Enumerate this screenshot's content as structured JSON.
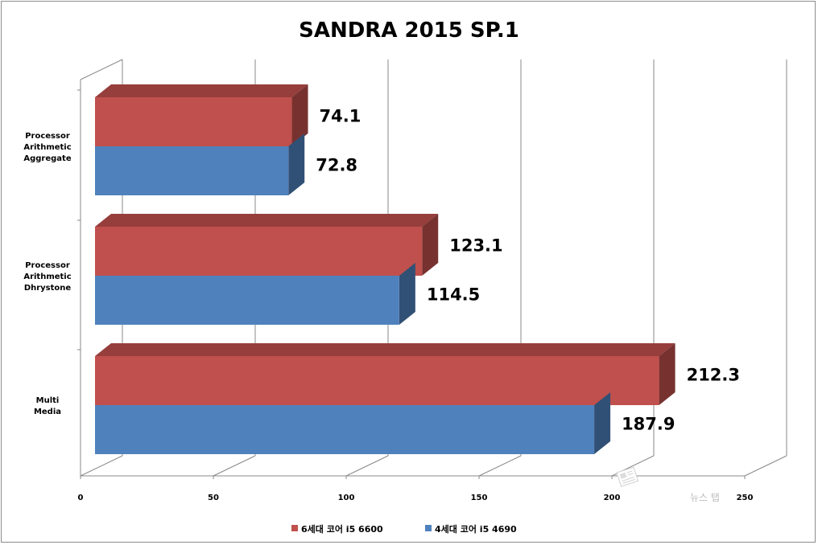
{
  "chart_data": {
    "type": "bar",
    "orientation": "horizontal",
    "three_d": true,
    "title": "SANDRA 2015 SP.1",
    "categories": [
      [
        "Processor",
        "Arithmetic",
        "Aggregate"
      ],
      [
        "Processor",
        "Arithmetic",
        "Dhrystone"
      ],
      [
        "Multi",
        "Media"
      ]
    ],
    "series": [
      {
        "name": "6세대 코어 i5 6600",
        "color": "#c0504d",
        "values": [
          74.1,
          123.1,
          212.3
        ],
        "labels": [
          "74.1",
          "123.1",
          "212.3"
        ]
      },
      {
        "name": "4세대 코어 i5 4690",
        "color": "#4f81bd",
        "values": [
          72.8,
          114.5,
          187.9
        ],
        "labels": [
          "72.8",
          "114.5",
          "187.9"
        ]
      }
    ],
    "xlim": [
      0,
      250
    ],
    "xticks": [
      "0",
      "50",
      "100",
      "150",
      "200",
      "250"
    ],
    "grid": true,
    "legend": "bottom"
  },
  "watermark": {
    "text": "뉴스 탭"
  }
}
